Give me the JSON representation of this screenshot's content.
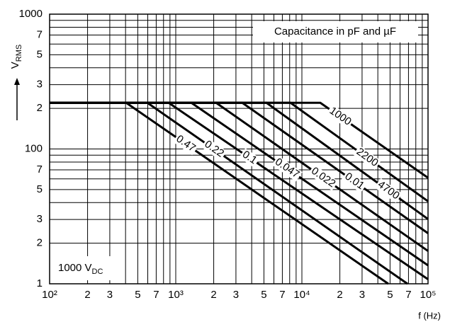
{
  "chart_data": {
    "type": "line",
    "log_x": true,
    "log_y": true,
    "grid": true,
    "xlim": [
      100,
      100000
    ],
    "ylim": [
      10,
      1000
    ],
    "xticks": [
      {
        "value": 100,
        "label": "10²"
      },
      {
        "value": 200,
        "label": "2"
      },
      {
        "value": 300,
        "label": "3"
      },
      {
        "value": 500,
        "label": "5"
      },
      {
        "value": 700,
        "label": "7"
      },
      {
        "value": 1000,
        "label": "10³"
      },
      {
        "value": 2000,
        "label": "2"
      },
      {
        "value": 3000,
        "label": "3"
      },
      {
        "value": 5000,
        "label": "5"
      },
      {
        "value": 7000,
        "label": "7"
      },
      {
        "value": 10000,
        "label": "10⁴"
      },
      {
        "value": 20000,
        "label": "2"
      },
      {
        "value": 30000,
        "label": "3"
      },
      {
        "value": 50000,
        "label": "5"
      },
      {
        "value": 70000,
        "label": "7"
      },
      {
        "value": 100000,
        "label": "10⁵"
      }
    ],
    "x_minor_ticks": [
      400,
      600,
      800,
      900,
      4000,
      6000,
      8000,
      9000,
      40000,
      60000,
      80000,
      90000
    ],
    "yticks": [
      {
        "value": 10,
        "label": "1"
      },
      {
        "value": 20,
        "label": "2"
      },
      {
        "value": 30,
        "label": "3"
      },
      {
        "value": 50,
        "label": "5"
      },
      {
        "value": 70,
        "label": "7"
      },
      100,
      {
        "value": 200,
        "label": "2"
      },
      {
        "value": 300,
        "label": "3"
      },
      {
        "value": 500,
        "label": "5"
      },
      {
        "value": 700,
        "label": "7"
      },
      1000
    ],
    "y_minor_ticks": [
      40,
      60,
      80,
      90,
      400,
      600,
      800,
      900
    ],
    "x_label": "f (Hz)",
    "y_label": "V",
    "y_label_sub": "RMS",
    "legend_title": "Capacitance in pF and µF",
    "annotation": "1000 V",
    "annotation_sub": "DC",
    "color": "#000000",
    "series": [
      {
        "name": "0.47",
        "x": [
          100,
          405,
          48400
        ],
        "values": [
          220,
          220,
          10
        ]
      },
      {
        "name": "0.22",
        "x": [
          100,
          596,
          68700
        ],
        "values": [
          220,
          220,
          10
        ]
      },
      {
        "name": "0.1",
        "x": [
          100,
          879,
          100000
        ],
        "values": [
          220,
          220,
          10.8
        ]
      },
      {
        "name": "0.047",
        "x": [
          100,
          1330,
          100000
        ],
        "values": [
          220,
          220,
          13.7
        ]
      },
      {
        "name": "0.022",
        "x": [
          100,
          2090,
          100000
        ],
        "values": [
          220,
          220,
          17.5
        ]
      },
      {
        "name": "0.01",
        "x": [
          100,
          3370,
          100000
        ],
        "values": [
          220,
          220,
          23.7
        ]
      },
      {
        "name": "4700",
        "x": [
          100,
          5240,
          100000
        ],
        "values": [
          220,
          220,
          30.2
        ]
      },
      {
        "name": "2200",
        "x": [
          100,
          8130,
          100000
        ],
        "values": [
          220,
          220,
          40.9
        ]
      },
      {
        "name": "1000",
        "x": [
          100,
          14000,
          100000
        ],
        "values": [
          220,
          220,
          61.1
        ]
      }
    ]
  }
}
